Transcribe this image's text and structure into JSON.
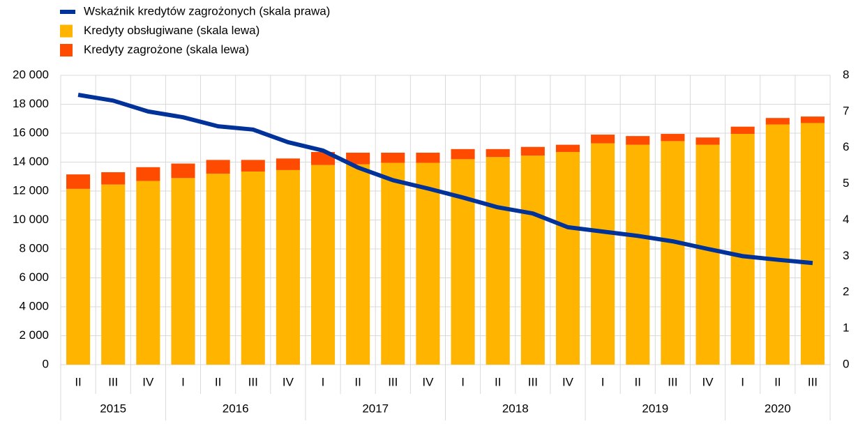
{
  "chart_data": {
    "type": "bar",
    "category_groups": [
      {
        "label": "2015",
        "categories": [
          "II",
          "III",
          "IV"
        ]
      },
      {
        "label": "2016",
        "categories": [
          "I",
          "II",
          "III",
          "IV"
        ]
      },
      {
        "label": "2017",
        "categories": [
          "I",
          "II",
          "III",
          "IV"
        ]
      },
      {
        "label": "2018",
        "categories": [
          "I",
          "II",
          "III",
          "IV"
        ]
      },
      {
        "label": "2019",
        "categories": [
          "I",
          "II",
          "III",
          "IV"
        ]
      },
      {
        "label": "2020",
        "categories": [
          "I",
          "II",
          "III"
        ]
      }
    ],
    "series": [
      {
        "name": "Wskaźnik kredytów zagrożonych (skala prawa)",
        "color": "#003299",
        "type": "line",
        "axis": "y2",
        "values": [
          7.46,
          7.3,
          7.0,
          6.84,
          6.59,
          6.5,
          6.15,
          5.92,
          5.45,
          5.1,
          4.87,
          4.62,
          4.35,
          4.18,
          3.8,
          3.68,
          3.56,
          3.41,
          3.2,
          3.0,
          2.9,
          2.81
        ]
      },
      {
        "name": "Kredyty obsługiwane (skala lewa)",
        "color": "#ffb400",
        "type": "bar",
        "values": [
          12150,
          12450,
          12700,
          12900,
          13200,
          13350,
          13450,
          13800,
          13850,
          13950,
          13950,
          14200,
          14350,
          14450,
          14700,
          15300,
          15200,
          15450,
          15200,
          15950,
          16600,
          16700
        ]
      },
      {
        "name": "Kredyty zagrożone (skala lewa)",
        "color": "#ff4b00",
        "type": "bar",
        "values": [
          1000,
          850,
          950,
          1000,
          950,
          800,
          800,
          900,
          800,
          700,
          700,
          700,
          550,
          600,
          500,
          600,
          600,
          500,
          500,
          500,
          450,
          450
        ]
      }
    ],
    "ylim": [
      0,
      20000
    ],
    "yticks": [
      0,
      {
        "value": 2000,
        "label": "2 000"
      },
      {
        "value": 4000,
        "label": "4 000"
      },
      {
        "value": 6000,
        "label": "6 000"
      },
      {
        "value": 8000,
        "label": "8 000"
      },
      {
        "value": 10000,
        "label": "10 000"
      },
      {
        "value": 12000,
        "label": "12 000"
      },
      {
        "value": 14000,
        "label": "14 000"
      },
      {
        "value": 16000,
        "label": "16 000"
      },
      {
        "value": 18000,
        "label": "18 000"
      },
      {
        "value": 20000,
        "label": "20 000"
      }
    ],
    "y2lim": [
      0,
      8
    ],
    "y2ticks": [
      0,
      1,
      2,
      3,
      4,
      5,
      6,
      7,
      8
    ],
    "grid": true
  }
}
